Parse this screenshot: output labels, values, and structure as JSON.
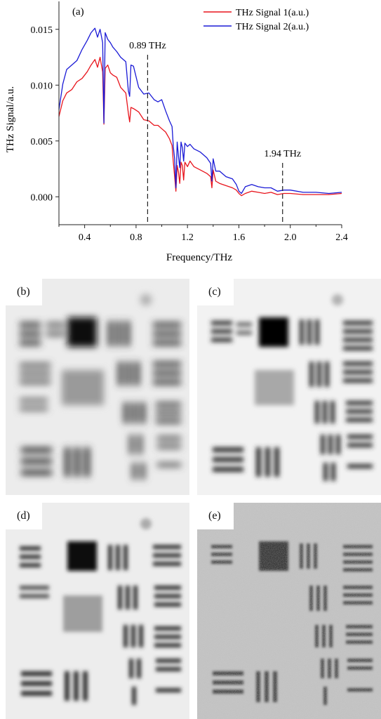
{
  "chart_data": {
    "type": "line",
    "panel_label": "(a)",
    "xlabel": "Frequency/THz",
    "ylabel": "THz Signal/a.u.",
    "xlim": [
      0.2,
      2.4
    ],
    "ylim": [
      -0.0025,
      0.0175
    ],
    "x_ticks": [
      "0.4",
      "0.8",
      "1.2",
      "1.6",
      "2.0",
      "2.4"
    ],
    "x_tick_values": [
      0.4,
      0.8,
      1.2,
      1.6,
      2.0,
      2.4
    ],
    "y_ticks": [
      "0.000",
      "0.005",
      "0.010",
      "0.015"
    ],
    "y_tick_values": [
      0,
      0.005,
      0.01,
      0.015
    ],
    "legend_position": "top-right",
    "series": [
      {
        "name": "THz Signal 1(a.u.)",
        "color": "#e8141c",
        "x": [
          0.2,
          0.23,
          0.26,
          0.3,
          0.34,
          0.38,
          0.42,
          0.45,
          0.48,
          0.5,
          0.52,
          0.54,
          0.55,
          0.56,
          0.58,
          0.6,
          0.62,
          0.65,
          0.68,
          0.72,
          0.74,
          0.75,
          0.76,
          0.78,
          0.82,
          0.86,
          0.9,
          0.94,
          0.97,
          1.0,
          1.03,
          1.06,
          1.08,
          1.09,
          1.1,
          1.11,
          1.12,
          1.13,
          1.14,
          1.15,
          1.16,
          1.17,
          1.18,
          1.2,
          1.22,
          1.25,
          1.3,
          1.35,
          1.38,
          1.39,
          1.4,
          1.42,
          1.45,
          1.5,
          1.55,
          1.58,
          1.6,
          1.62,
          1.65,
          1.7,
          1.75,
          1.8,
          1.85,
          1.9,
          1.95,
          2.0,
          2.1,
          2.2,
          2.3,
          2.4
        ],
        "y": [
          0.0072,
          0.0086,
          0.0093,
          0.0096,
          0.0103,
          0.0106,
          0.0112,
          0.0118,
          0.0123,
          0.0116,
          0.0125,
          0.0112,
          0.0065,
          0.0115,
          0.0118,
          0.0111,
          0.0109,
          0.0107,
          0.0098,
          0.0093,
          0.0075,
          0.0067,
          0.008,
          0.0079,
          0.0076,
          0.0069,
          0.0068,
          0.0064,
          0.0064,
          0.0061,
          0.0058,
          0.0052,
          0.0046,
          0.0031,
          0.0018,
          0.0005,
          0.0028,
          0.0022,
          0.0012,
          0.0031,
          0.0028,
          0.0015,
          0.0031,
          0.0027,
          0.0032,
          0.0027,
          0.0024,
          0.0021,
          0.0018,
          0.0008,
          0.0024,
          0.0014,
          0.0012,
          0.001,
          0.0008,
          0.0006,
          0.0003,
          0.0001,
          0.0003,
          0.0005,
          0.0004,
          0.0003,
          0.0004,
          0.0002,
          0.0003,
          0.0003,
          0.0002,
          0.0002,
          0.0002,
          0.0003
        ]
      },
      {
        "name": "THz Signal 2(a.u.)",
        "color": "#1a1ad6",
        "x": [
          0.2,
          0.23,
          0.26,
          0.3,
          0.34,
          0.38,
          0.42,
          0.45,
          0.48,
          0.5,
          0.52,
          0.54,
          0.55,
          0.56,
          0.58,
          0.6,
          0.62,
          0.65,
          0.68,
          0.72,
          0.74,
          0.75,
          0.76,
          0.78,
          0.82,
          0.86,
          0.9,
          0.94,
          0.97,
          1.0,
          1.03,
          1.06,
          1.08,
          1.09,
          1.1,
          1.11,
          1.12,
          1.13,
          1.14,
          1.15,
          1.16,
          1.17,
          1.18,
          1.2,
          1.22,
          1.25,
          1.3,
          1.35,
          1.38,
          1.39,
          1.4,
          1.42,
          1.45,
          1.5,
          1.55,
          1.58,
          1.6,
          1.62,
          1.65,
          1.7,
          1.75,
          1.8,
          1.85,
          1.9,
          1.95,
          2.0,
          2.1,
          2.2,
          2.3,
          2.4
        ],
        "y": [
          0.0078,
          0.0101,
          0.0114,
          0.0118,
          0.0122,
          0.0132,
          0.014,
          0.0147,
          0.0151,
          0.0143,
          0.015,
          0.0138,
          0.0066,
          0.0147,
          0.0141,
          0.0138,
          0.0134,
          0.013,
          0.0125,
          0.0121,
          0.0095,
          0.009,
          0.0118,
          0.0117,
          0.0098,
          0.0092,
          0.0093,
          0.0087,
          0.0085,
          0.0087,
          0.0077,
          0.0068,
          0.0063,
          0.0045,
          0.0034,
          0.0008,
          0.0049,
          0.0036,
          0.0026,
          0.0049,
          0.0044,
          0.0032,
          0.0048,
          0.0045,
          0.0047,
          0.0043,
          0.004,
          0.0035,
          0.003,
          0.0014,
          0.0034,
          0.0023,
          0.0023,
          0.0018,
          0.0016,
          0.0011,
          0.0005,
          0.0003,
          0.0009,
          0.0011,
          0.0009,
          0.0008,
          0.0008,
          0.0005,
          0.0006,
          0.0006,
          0.0004,
          0.0004,
          0.0003,
          0.0004
        ]
      }
    ],
    "annotations": [
      {
        "text": "0.89 THz",
        "x": 0.89
      },
      {
        "text": "1.94 THz",
        "x": 1.94
      }
    ]
  },
  "panels": [
    {
      "label": "(b)"
    },
    {
      "label": "(c)"
    },
    {
      "label": "(d)"
    },
    {
      "label": "(e)"
    }
  ]
}
